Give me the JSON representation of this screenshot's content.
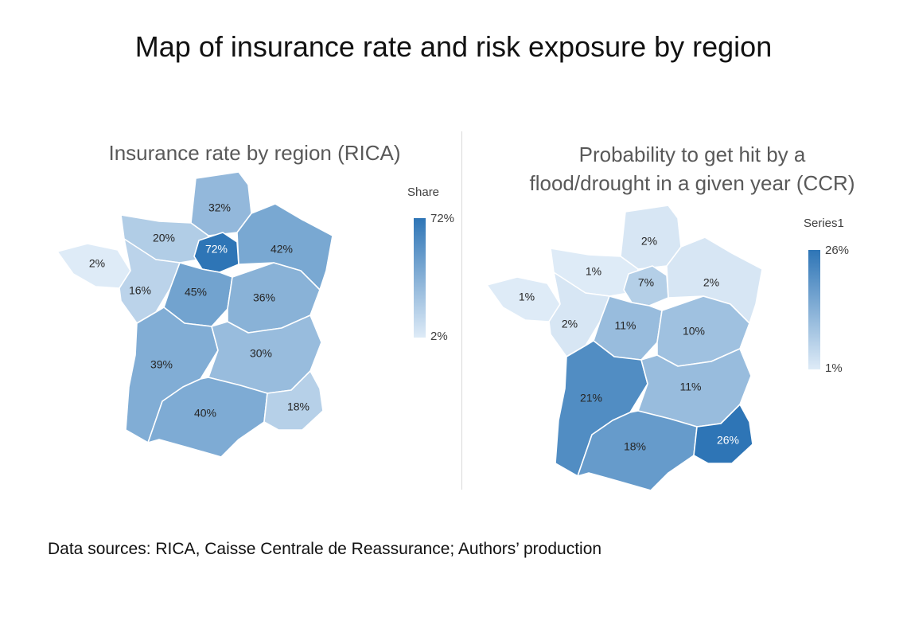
{
  "title": "Map of insurance rate and risk exposure by region",
  "source": "Data sources: RICA, Caisse Centrale de Reassurance; Authors’ production",
  "maps": [
    {
      "title": "Insurance rate by region (RICA)",
      "legend": {
        "title": "Share",
        "max": "72%",
        "min": "2%"
      },
      "color_low": "#deebf7",
      "color_high": "#2e75b6",
      "regions": [
        {
          "name": "Hauts-de-France",
          "value": 32,
          "label": "32%"
        },
        {
          "name": "Normandie",
          "value": 20,
          "label": "20%"
        },
        {
          "name": "Île-de-France",
          "value": 72,
          "label": "72%"
        },
        {
          "name": "Grand Est",
          "value": 42,
          "label": "42%"
        },
        {
          "name": "Bretagne",
          "value": 2,
          "label": "2%"
        },
        {
          "name": "Pays de la Loire",
          "value": 16,
          "label": "16%"
        },
        {
          "name": "Centre-Val de Loire",
          "value": 45,
          "label": "45%"
        },
        {
          "name": "Bourgogne-Franche-Comté",
          "value": 36,
          "label": "36%"
        },
        {
          "name": "Nouvelle-Aquitaine",
          "value": 39,
          "label": "39%"
        },
        {
          "name": "Auvergne-Rhône-Alpes",
          "value": 30,
          "label": "30%"
        },
        {
          "name": "Occitanie",
          "value": 40,
          "label": "40%"
        },
        {
          "name": "Provence-Alpes-Côte d'Azur",
          "value": 18,
          "label": "18%"
        }
      ]
    },
    {
      "title": "Probability to get hit by a flood/drought in a given year (CCR)",
      "title_lines": [
        "Probability to get hit by a",
        "flood/drought in a given year (CCR)"
      ],
      "legend": {
        "title": "Series1",
        "max": "26%",
        "min": "1%"
      },
      "color_low": "#deebf7",
      "color_high": "#2e75b6",
      "regions": [
        {
          "name": "Hauts-de-France",
          "value": 2,
          "label": "2%"
        },
        {
          "name": "Normandie",
          "value": 1,
          "label": "1%"
        },
        {
          "name": "Île-de-France",
          "value": 7,
          "label": "7%"
        },
        {
          "name": "Grand Est",
          "value": 2,
          "label": "2%"
        },
        {
          "name": "Bretagne",
          "value": 1,
          "label": "1%"
        },
        {
          "name": "Pays de la Loire",
          "value": 2,
          "label": "2%"
        },
        {
          "name": "Centre-Val de Loire",
          "value": 11,
          "label": "11%"
        },
        {
          "name": "Bourgogne-Franche-Comté",
          "value": 10,
          "label": "10%"
        },
        {
          "name": "Nouvelle-Aquitaine",
          "value": 21,
          "label": "21%"
        },
        {
          "name": "Auvergne-Rhône-Alpes",
          "value": 11,
          "label": "11%"
        },
        {
          "name": "Occitanie",
          "value": 18,
          "label": "18%"
        },
        {
          "name": "Provence-Alpes-Côte d'Azur",
          "value": 26,
          "label": "26%"
        }
      ]
    }
  ]
}
